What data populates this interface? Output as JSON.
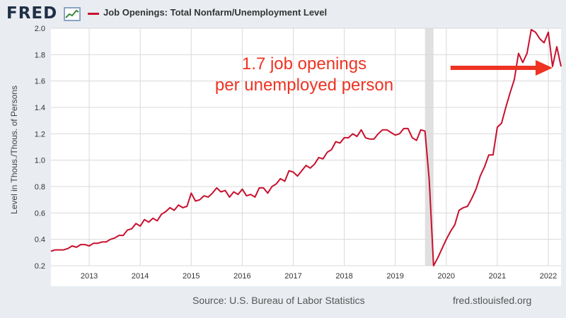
{
  "header": {
    "logo_text": "FRED",
    "series_title": "Job Openings: Total Nonfarm/Unemployment Level"
  },
  "colors": {
    "series": "#c8102e",
    "annotation": "#ee3322",
    "recession": "#e0e0e0",
    "grid": "#d9d9d9"
  },
  "footer": {
    "source": "Source: U.S. Bureau of Labor Statistics",
    "url": "fred.stlouisfed.org"
  },
  "chart_data": {
    "type": "line",
    "title": "Job Openings: Total Nonfarm/Unemployment Level",
    "ylabel": "Level in Thous./Thous. of Persons",
    "xlabel": "",
    "ylim": [
      0.2,
      2.0
    ],
    "xlim": [
      "2012-10",
      "2022-10"
    ],
    "yticks": [
      "0.2",
      "0.4",
      "0.6",
      "0.8",
      "1.0",
      "1.2",
      "1.4",
      "1.6",
      "1.8",
      "2.0"
    ],
    "xticks": [
      "2013",
      "2014",
      "2015",
      "2016",
      "2017",
      "2018",
      "2019",
      "2020",
      "2021",
      "2022"
    ],
    "grid": true,
    "recession": {
      "start": "2020-02",
      "end": "2020-04"
    },
    "annotation": {
      "lines": [
        "1.7 job openings",
        "per unemployed person"
      ],
      "arrow_from": "2020-08",
      "arrow_to": "2022-08",
      "arrow_y": 1.7
    },
    "series": [
      {
        "name": "Job Openings: Total Nonfarm/Unemployment Level",
        "x": [
          "2012-10",
          "2012-11",
          "2012-12",
          "2013-01",
          "2013-02",
          "2013-03",
          "2013-04",
          "2013-05",
          "2013-06",
          "2013-07",
          "2013-08",
          "2013-09",
          "2013-10",
          "2013-11",
          "2013-12",
          "2014-01",
          "2014-02",
          "2014-03",
          "2014-04",
          "2014-05",
          "2014-06",
          "2014-07",
          "2014-08",
          "2014-09",
          "2014-10",
          "2014-11",
          "2014-12",
          "2015-01",
          "2015-02",
          "2015-03",
          "2015-04",
          "2015-05",
          "2015-06",
          "2015-07",
          "2015-08",
          "2015-09",
          "2015-10",
          "2015-11",
          "2015-12",
          "2016-01",
          "2016-02",
          "2016-03",
          "2016-04",
          "2016-05",
          "2016-06",
          "2016-07",
          "2016-08",
          "2016-09",
          "2016-10",
          "2016-11",
          "2016-12",
          "2017-01",
          "2017-02",
          "2017-03",
          "2017-04",
          "2017-05",
          "2017-06",
          "2017-07",
          "2017-08",
          "2017-09",
          "2017-10",
          "2017-11",
          "2017-12",
          "2018-01",
          "2018-02",
          "2018-03",
          "2018-04",
          "2018-05",
          "2018-06",
          "2018-07",
          "2018-08",
          "2018-09",
          "2018-10",
          "2018-11",
          "2018-12",
          "2019-01",
          "2019-02",
          "2019-03",
          "2019-04",
          "2019-05",
          "2019-06",
          "2019-07",
          "2019-08",
          "2019-09",
          "2019-10",
          "2019-11",
          "2019-12",
          "2020-01",
          "2020-02",
          "2020-03",
          "2020-04",
          "2020-05",
          "2020-06",
          "2020-07",
          "2020-08",
          "2020-09",
          "2020-10",
          "2020-11",
          "2020-12",
          "2021-01",
          "2021-02",
          "2021-03",
          "2021-04",
          "2021-05",
          "2021-06",
          "2021-07",
          "2021-08",
          "2021-09",
          "2021-10",
          "2021-11",
          "2021-12",
          "2022-01",
          "2022-02",
          "2022-03",
          "2022-04",
          "2022-05",
          "2022-06",
          "2022-07",
          "2022-08",
          "2022-09",
          "2022-10"
        ],
        "values": [
          0.31,
          0.32,
          0.32,
          0.32,
          0.33,
          0.35,
          0.34,
          0.36,
          0.36,
          0.35,
          0.37,
          0.37,
          0.38,
          0.38,
          0.4,
          0.41,
          0.43,
          0.43,
          0.47,
          0.48,
          0.52,
          0.5,
          0.55,
          0.53,
          0.56,
          0.54,
          0.59,
          0.61,
          0.64,
          0.62,
          0.66,
          0.64,
          0.65,
          0.75,
          0.69,
          0.7,
          0.73,
          0.72,
          0.75,
          0.79,
          0.76,
          0.77,
          0.72,
          0.76,
          0.74,
          0.78,
          0.73,
          0.74,
          0.72,
          0.79,
          0.79,
          0.75,
          0.8,
          0.82,
          0.86,
          0.84,
          0.92,
          0.91,
          0.88,
          0.92,
          0.96,
          0.94,
          0.97,
          1.02,
          1.01,
          1.06,
          1.08,
          1.14,
          1.13,
          1.17,
          1.17,
          1.2,
          1.18,
          1.23,
          1.17,
          1.16,
          1.16,
          1.2,
          1.23,
          1.23,
          1.21,
          1.19,
          1.2,
          1.24,
          1.24,
          1.17,
          1.15,
          1.23,
          1.22,
          0.85,
          0.2,
          0.26,
          0.33,
          0.4,
          0.46,
          0.51,
          0.62,
          0.64,
          0.65,
          0.71,
          0.78,
          0.88,
          0.95,
          1.04,
          1.04,
          1.25,
          1.28,
          1.4,
          1.51,
          1.61,
          1.81,
          1.74,
          1.81,
          1.99,
          1.97,
          1.92,
          1.89,
          1.97,
          1.71,
          1.86,
          1.71
        ]
      }
    ]
  }
}
